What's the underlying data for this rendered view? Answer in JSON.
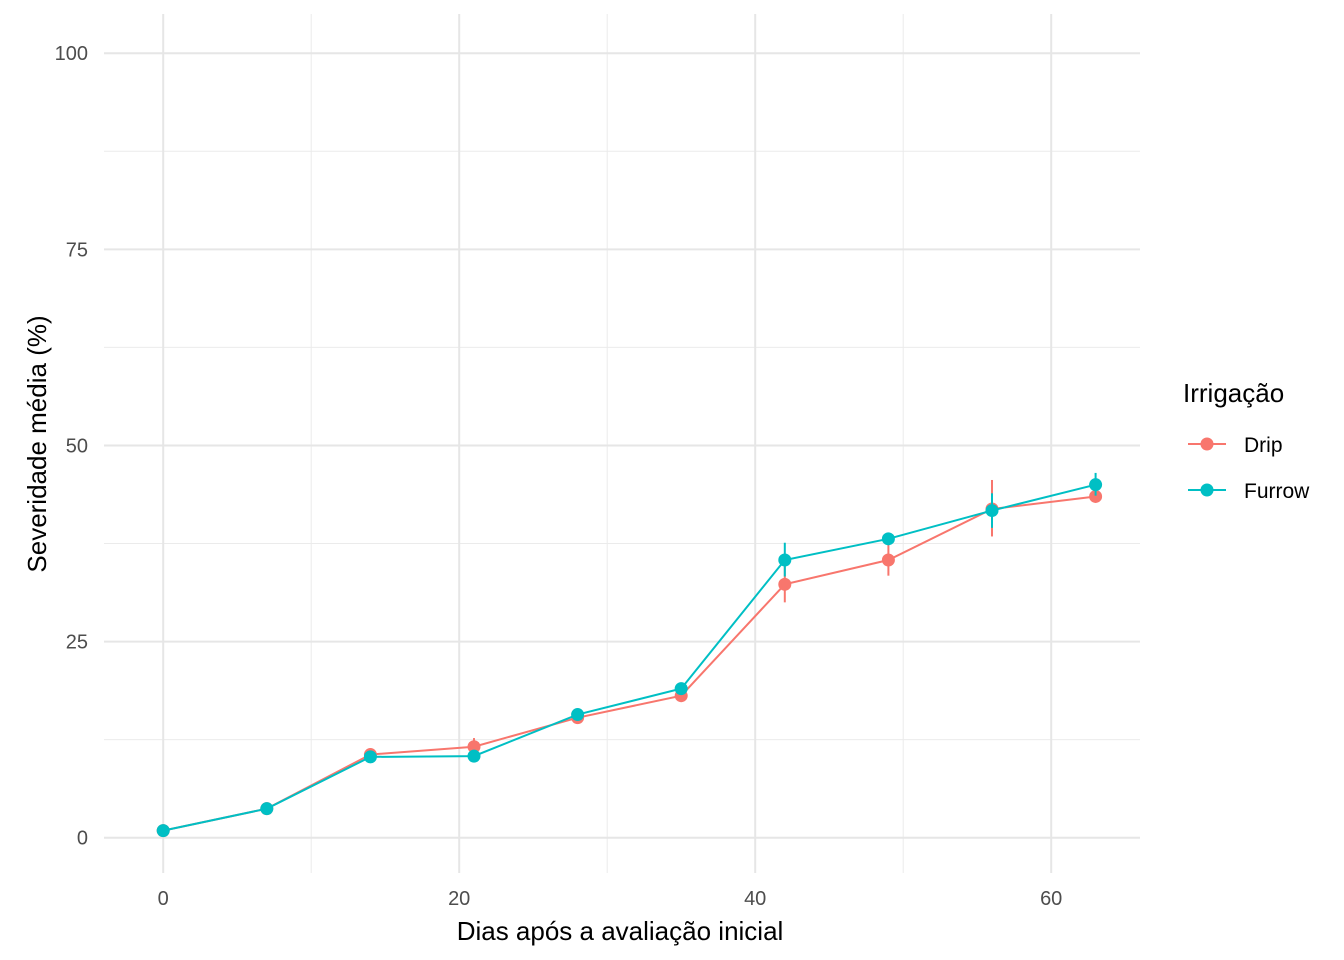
{
  "chart_data": {
    "type": "line",
    "xlabel": "Dias após a avaliação inicial",
    "ylabel": "Severidade média (%)",
    "xlim": [
      -4,
      66
    ],
    "ylim": [
      -4.5,
      105
    ],
    "x_ticks": [
      0,
      20,
      40,
      60
    ],
    "x_minor_ticks": [
      10,
      30,
      50
    ],
    "y_ticks": [
      0,
      25,
      50,
      75,
      100
    ],
    "y_minor_ticks": [
      12.5,
      37.5,
      62.5,
      87.5
    ],
    "x_tick_labels": [
      "0",
      "20",
      "40",
      "60"
    ],
    "y_tick_labels": [
      "0",
      "25",
      "50",
      "75",
      "100"
    ],
    "grid": true,
    "legend": {
      "title": "Irrigação",
      "position": "right"
    },
    "x": [
      0,
      7,
      14,
      21,
      28,
      35,
      42,
      49,
      56,
      63
    ],
    "series": [
      {
        "name": "Drip",
        "color": "#F8766D",
        "values": [
          0.9,
          3.7,
          10.6,
          11.6,
          15.3,
          18.1,
          32.3,
          35.4,
          41.9,
          43.5
        ],
        "error_low": [
          0.7,
          3.4,
          9.8,
          10.6,
          14.6,
          17.5,
          30.0,
          33.4,
          38.4,
          43.0
        ],
        "error_high": [
          1.1,
          4.0,
          11.4,
          12.7,
          16.0,
          18.7,
          34.6,
          37.4,
          45.6,
          44.0
        ]
      },
      {
        "name": "Furrow",
        "color": "#00BFC4",
        "values": [
          0.9,
          3.7,
          10.3,
          10.4,
          15.7,
          19.0,
          35.4,
          38.1,
          41.7,
          45.0
        ],
        "error_low": [
          0.7,
          3.5,
          9.9,
          9.9,
          15.1,
          18.5,
          33.3,
          37.5,
          39.5,
          43.6
        ],
        "error_high": [
          1.1,
          3.9,
          10.7,
          10.9,
          16.3,
          19.5,
          37.6,
          38.8,
          43.9,
          46.5
        ]
      }
    ]
  }
}
